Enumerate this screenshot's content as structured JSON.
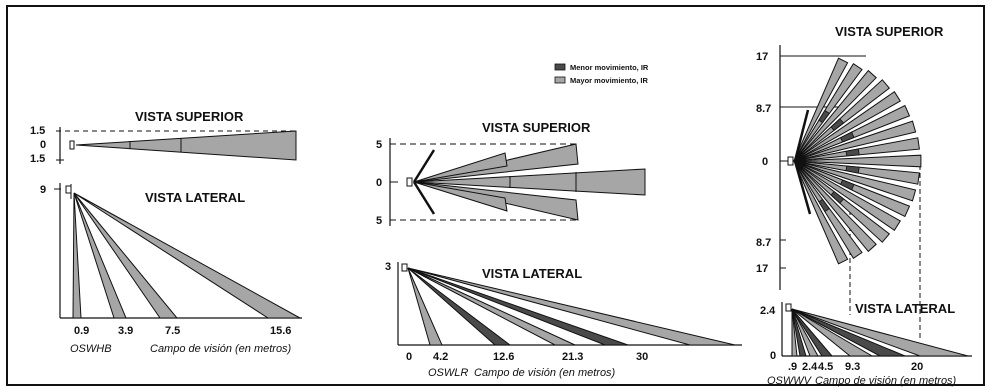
{
  "colors": {
    "beam_gray": "#a6a6a6",
    "beam_dark": "#4a4a4a",
    "line": "#111111"
  },
  "legend": {
    "dark": "Menor movimiento, IR",
    "light": "Mayor movimiento, IR"
  },
  "oswhb": {
    "top_title": "VISTA SUPERIOR",
    "side_title": "VISTA LATERAL",
    "y_top": [
      "1.5",
      "0",
      "1.5"
    ],
    "y_side": "9",
    "x_ticks": [
      "0.9",
      "3.9",
      "7.5",
      "15.6"
    ],
    "model": "OSWHB",
    "caption": "Campo de visión (en metros)"
  },
  "oswlr": {
    "top_title": "VISTA SUPERIOR",
    "side_title": "VISTA LATERAL",
    "y_top": [
      "5",
      "0",
      "5"
    ],
    "y_side": "3",
    "x_ticks": [
      "0",
      "4.2",
      "12.6",
      "21.3",
      "30"
    ],
    "model": "OSWLR",
    "caption": "Campo de visión (en metros)"
  },
  "oswwv": {
    "top_title": "VISTA SUPERIOR",
    "side_title": "VISTA LATERAL",
    "y_top": [
      "17",
      "8.7",
      "0",
      "8.7",
      "17"
    ],
    "y_side": [
      "2.4",
      "0"
    ],
    "x_ticks": [
      ".9",
      "2.4",
      "4.5",
      "9.3",
      "20"
    ],
    "model": "OSWWV",
    "caption": "Campo de visión (en metros)"
  }
}
